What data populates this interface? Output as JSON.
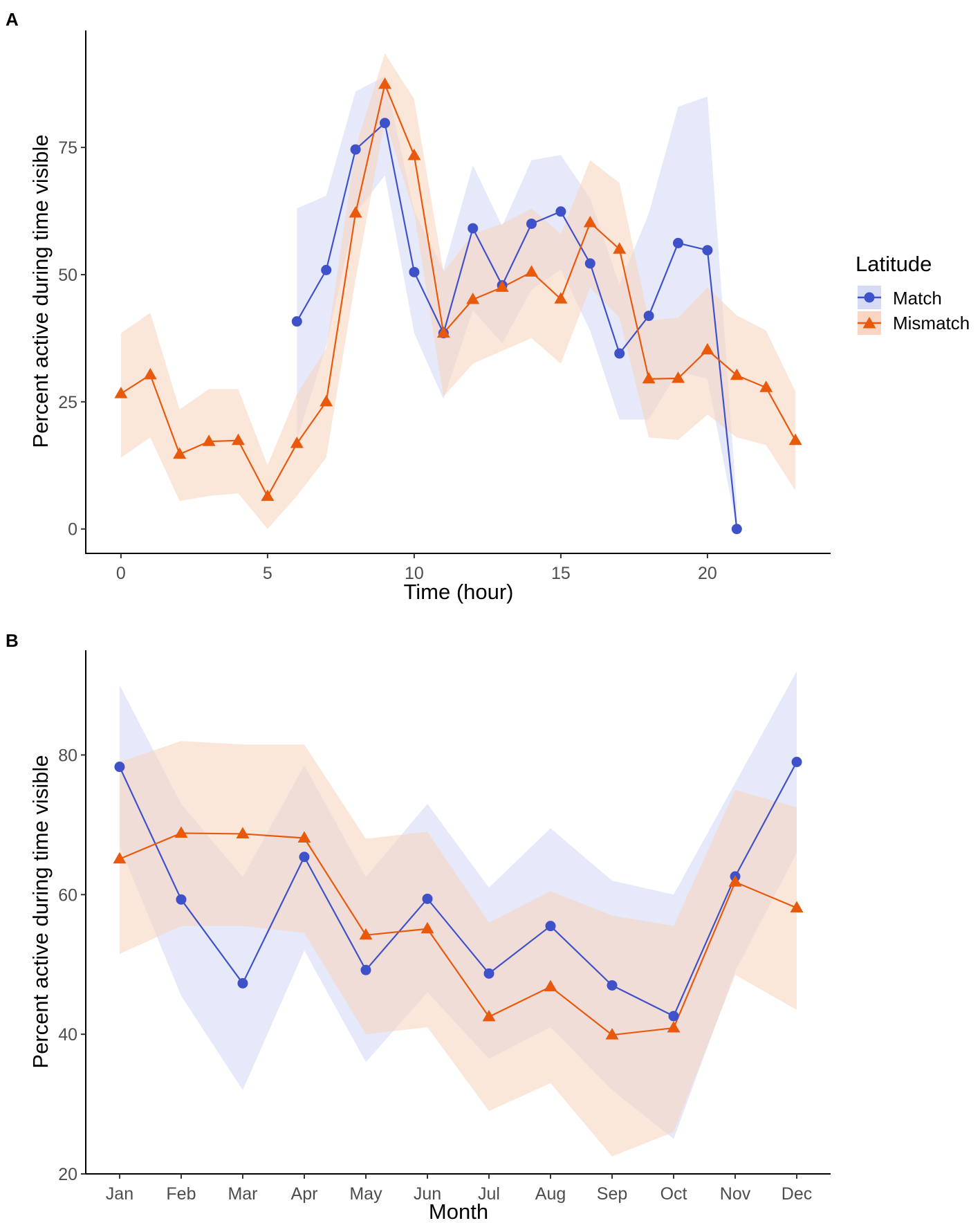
{
  "colors": {
    "match": "#3F51C9",
    "mismatch": "#E8590C",
    "match_band": "#D6DAF5",
    "mismatch_band": "#F9D5C2"
  },
  "legend": {
    "title": "Latitude",
    "items": [
      "Match",
      "Mismatch"
    ]
  },
  "chart_data": [
    {
      "panel_label": "A",
      "type": "line",
      "xlabel": "Time (hour)",
      "ylabel": "Percent active during time visible",
      "xlim": [
        -1.2,
        24.2
      ],
      "ylim": [
        -4.8,
        98
      ],
      "xticks": [
        0,
        5,
        10,
        15,
        20
      ],
      "xtick_labels": [
        "0",
        "5",
        "10",
        "15",
        "20"
      ],
      "yticks": [
        0,
        25,
        50,
        75
      ],
      "ytick_labels": [
        "0",
        "25",
        "50",
        "75"
      ],
      "series": [
        {
          "name": "Match",
          "x": [
            6,
            7,
            8,
            9,
            10,
            11,
            12,
            13,
            14,
            15,
            16,
            17,
            18,
            19,
            20,
            21
          ],
          "values": [
            40.8,
            50.9,
            74.6,
            79.8,
            50.5,
            38.5,
            59.1,
            47.9,
            60,
            62.4,
            52.2,
            34.5,
            41.9,
            56.2,
            54.8,
            0
          ],
          "lower": [
            17.5,
            36,
            62,
            69.5,
            38.5,
            25.5,
            43,
            36.5,
            47,
            51,
            39,
            21.5,
            21.5,
            31,
            29.5,
            0
          ],
          "upper": [
            63,
            65.5,
            86,
            89,
            62.5,
            51,
            71.5,
            59.5,
            72.5,
            73.5,
            65,
            48,
            62,
            83,
            85,
            5
          ]
        },
        {
          "name": "Mismatch",
          "x": [
            0,
            1,
            2,
            3,
            4,
            5,
            6,
            7,
            8,
            9,
            10,
            11,
            12,
            13,
            14,
            15,
            16,
            17,
            18,
            19,
            20,
            21,
            22,
            23
          ],
          "values": [
            26.6,
            30.3,
            14.7,
            17.2,
            17.4,
            6.4,
            16.8,
            25,
            62.1,
            87.4,
            73.4,
            38.5,
            45.1,
            47.5,
            50.5,
            45.2,
            60.2,
            55,
            29.5,
            29.6,
            35.2,
            30.2,
            27.8,
            17.4
          ],
          "lower": [
            14,
            18,
            5.5,
            6.5,
            7,
            0,
            6.5,
            14,
            49,
            80.5,
            62,
            26,
            32.5,
            35,
            37.5,
            32.5,
            47.5,
            41.5,
            18,
            17.5,
            22.5,
            18,
            16.5,
            7.5
          ],
          "upper": [
            38.5,
            42.5,
            23.5,
            27.5,
            27.5,
            12.5,
            26.5,
            35.5,
            75,
            93.5,
            84.5,
            50.5,
            58,
            60,
            63,
            58,
            72.5,
            68,
            41,
            41.5,
            47.5,
            42,
            39,
            27
          ]
        }
      ]
    },
    {
      "panel_label": "B",
      "type": "line",
      "xlabel": "Month",
      "ylabel": "Percent active during time visible",
      "categories": [
        "Jan",
        "Feb",
        "Mar",
        "Apr",
        "May",
        "Jun",
        "Jul",
        "Aug",
        "Sep",
        "Oct",
        "Nov",
        "Dec"
      ],
      "xlim": [
        0.45,
        12.55
      ],
      "ylim": [
        20,
        95
      ],
      "yticks": [
        20,
        40,
        60,
        80
      ],
      "ytick_labels": [
        "20",
        "40",
        "60",
        "80"
      ],
      "series": [
        {
          "name": "Match",
          "values": [
            78.3,
            59.3,
            47.3,
            65.4,
            49.2,
            59.4,
            48.7,
            55.5,
            47,
            42.6,
            62.6,
            79
          ],
          "lower": [
            67,
            45.5,
            32,
            52,
            36,
            46,
            36.5,
            41,
            32,
            25,
            49,
            66
          ],
          "upper": [
            90,
            73,
            62.5,
            78.5,
            62.5,
            73,
            61,
            69.5,
            62,
            60,
            76,
            92
          ]
        },
        {
          "name": "Mismatch",
          "values": [
            65.1,
            68.8,
            68.7,
            68.1,
            54.2,
            55.1,
            42.5,
            46.8,
            39.9,
            40.9,
            61.8,
            58.1
          ],
          "lower": [
            51.5,
            55.5,
            55.5,
            54.5,
            40,
            41,
            29,
            33,
            22.5,
            26,
            48.5,
            43.5
          ],
          "upper": [
            79,
            82,
            81.5,
            81.5,
            68,
            69,
            56,
            60.5,
            57,
            55.5,
            75,
            72.5
          ]
        }
      ]
    }
  ]
}
